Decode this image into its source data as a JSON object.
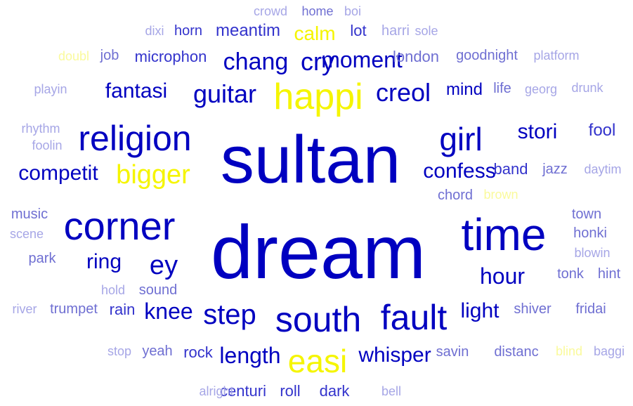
{
  "colors": {
    "dark": "#0000c0",
    "mid": "#3333cc",
    "soft": "#6f6fd2",
    "light": "#a6a6e6",
    "yellow": "#f5f500",
    "pale_yellow": "#fafa9c"
  },
  "words": [
    {
      "text": "sultan",
      "size": 96,
      "color": "dark"
    },
    {
      "text": "dream",
      "size": 108,
      "color": "dark"
    },
    {
      "text": "time",
      "size": 64,
      "color": "dark"
    },
    {
      "text": "corner",
      "size": 56,
      "color": "dark"
    },
    {
      "text": "religion",
      "size": 50,
      "color": "dark"
    },
    {
      "text": "happi",
      "size": 52,
      "color": "yellow"
    },
    {
      "text": "girl",
      "size": 46,
      "color": "dark"
    },
    {
      "text": "easi",
      "size": 46,
      "color": "yellow"
    },
    {
      "text": "south",
      "size": 50,
      "color": "dark"
    },
    {
      "text": "fault",
      "size": 50,
      "color": "dark"
    },
    {
      "text": "step",
      "size": 40,
      "color": "dark"
    },
    {
      "text": "ey",
      "size": 38,
      "color": "dark"
    },
    {
      "text": "bigger",
      "size": 38,
      "color": "yellow"
    },
    {
      "text": "guitar",
      "size": 36,
      "color": "dark"
    },
    {
      "text": "creol",
      "size": 36,
      "color": "dark"
    },
    {
      "text": "chang",
      "size": 34,
      "color": "dark"
    },
    {
      "text": "cry",
      "size": 36,
      "color": "dark"
    },
    {
      "text": "moment",
      "size": 32,
      "color": "dark"
    },
    {
      "text": "hour",
      "size": 32,
      "color": "dark"
    },
    {
      "text": "knee",
      "size": 32,
      "color": "dark"
    },
    {
      "text": "length",
      "size": 32,
      "color": "dark"
    },
    {
      "text": "whisper",
      "size": 30,
      "color": "dark"
    },
    {
      "text": "stori",
      "size": 30,
      "color": "dark"
    },
    {
      "text": "confess",
      "size": 30,
      "color": "dark"
    },
    {
      "text": "competit",
      "size": 30,
      "color": "dark"
    },
    {
      "text": "fantasi",
      "size": 30,
      "color": "dark"
    },
    {
      "text": "ring",
      "size": 30,
      "color": "dark"
    },
    {
      "text": "light",
      "size": 30,
      "color": "dark"
    },
    {
      "text": "calm",
      "size": 28,
      "color": "yellow"
    },
    {
      "text": "mind",
      "size": 24,
      "color": "dark"
    },
    {
      "text": "fool",
      "size": 24,
      "color": "mid"
    },
    {
      "text": "band",
      "size": 22,
      "color": "mid"
    },
    {
      "text": "meantim",
      "size": 24,
      "color": "mid"
    },
    {
      "text": "lot",
      "size": 22,
      "color": "mid"
    },
    {
      "text": "microphon",
      "size": 22,
      "color": "mid"
    },
    {
      "text": "rain",
      "size": 22,
      "color": "mid"
    },
    {
      "text": "rock",
      "size": 22,
      "color": "mid"
    },
    {
      "text": "centuri",
      "size": 22,
      "color": "mid"
    },
    {
      "text": "roll",
      "size": 22,
      "color": "mid"
    },
    {
      "text": "dark",
      "size": 22,
      "color": "mid"
    },
    {
      "text": "horn",
      "size": 20,
      "color": "mid"
    },
    {
      "text": "london",
      "size": 22,
      "color": "soft"
    },
    {
      "text": "goodnight",
      "size": 20,
      "color": "soft"
    },
    {
      "text": "job",
      "size": 20,
      "color": "soft"
    },
    {
      "text": "life",
      "size": 20,
      "color": "soft"
    },
    {
      "text": "jazz",
      "size": 20,
      "color": "soft"
    },
    {
      "text": "music",
      "size": 20,
      "color": "soft"
    },
    {
      "text": "park",
      "size": 20,
      "color": "soft"
    },
    {
      "text": "town",
      "size": 20,
      "color": "soft"
    },
    {
      "text": "honki",
      "size": 20,
      "color": "soft"
    },
    {
      "text": "tonk",
      "size": 20,
      "color": "soft"
    },
    {
      "text": "hint",
      "size": 20,
      "color": "soft"
    },
    {
      "text": "sound",
      "size": 20,
      "color": "soft"
    },
    {
      "text": "trumpet",
      "size": 20,
      "color": "soft"
    },
    {
      "text": "shiver",
      "size": 20,
      "color": "soft"
    },
    {
      "text": "fridai",
      "size": 20,
      "color": "soft"
    },
    {
      "text": "savin",
      "size": 20,
      "color": "soft"
    },
    {
      "text": "distanc",
      "size": 20,
      "color": "soft"
    },
    {
      "text": "yeah",
      "size": 20,
      "color": "soft"
    },
    {
      "text": "chord",
      "size": 20,
      "color": "soft"
    },
    {
      "text": "home",
      "size": 18,
      "color": "soft"
    },
    {
      "text": "harri",
      "size": 20,
      "color": "light"
    },
    {
      "text": "crowd",
      "size": 18,
      "color": "light"
    },
    {
      "text": "boi",
      "size": 18,
      "color": "light"
    },
    {
      "text": "dixi",
      "size": 18,
      "color": "light"
    },
    {
      "text": "sole",
      "size": 18,
      "color": "light"
    },
    {
      "text": "platform",
      "size": 18,
      "color": "light"
    },
    {
      "text": "playin",
      "size": 18,
      "color": "light"
    },
    {
      "text": "georg",
      "size": 18,
      "color": "light"
    },
    {
      "text": "drunk",
      "size": 18,
      "color": "light"
    },
    {
      "text": "rhythm",
      "size": 18,
      "color": "light"
    },
    {
      "text": "foolin",
      "size": 18,
      "color": "light"
    },
    {
      "text": "daytim",
      "size": 18,
      "color": "light"
    },
    {
      "text": "scene",
      "size": 18,
      "color": "light"
    },
    {
      "text": "blowin",
      "size": 18,
      "color": "light"
    },
    {
      "text": "hold",
      "size": 18,
      "color": "light"
    },
    {
      "text": "river",
      "size": 18,
      "color": "light"
    },
    {
      "text": "stop",
      "size": 18,
      "color": "light"
    },
    {
      "text": "baggi",
      "size": 18,
      "color": "light"
    },
    {
      "text": "alright",
      "size": 18,
      "color": "light"
    },
    {
      "text": "bell",
      "size": 18,
      "color": "light"
    },
    {
      "text": "doubl",
      "size": 18,
      "color": "pale_yellow"
    },
    {
      "text": "brown",
      "size": 18,
      "color": "pale_yellow"
    },
    {
      "text": "blind",
      "size": 18,
      "color": "pale_yellow"
    }
  ]
}
